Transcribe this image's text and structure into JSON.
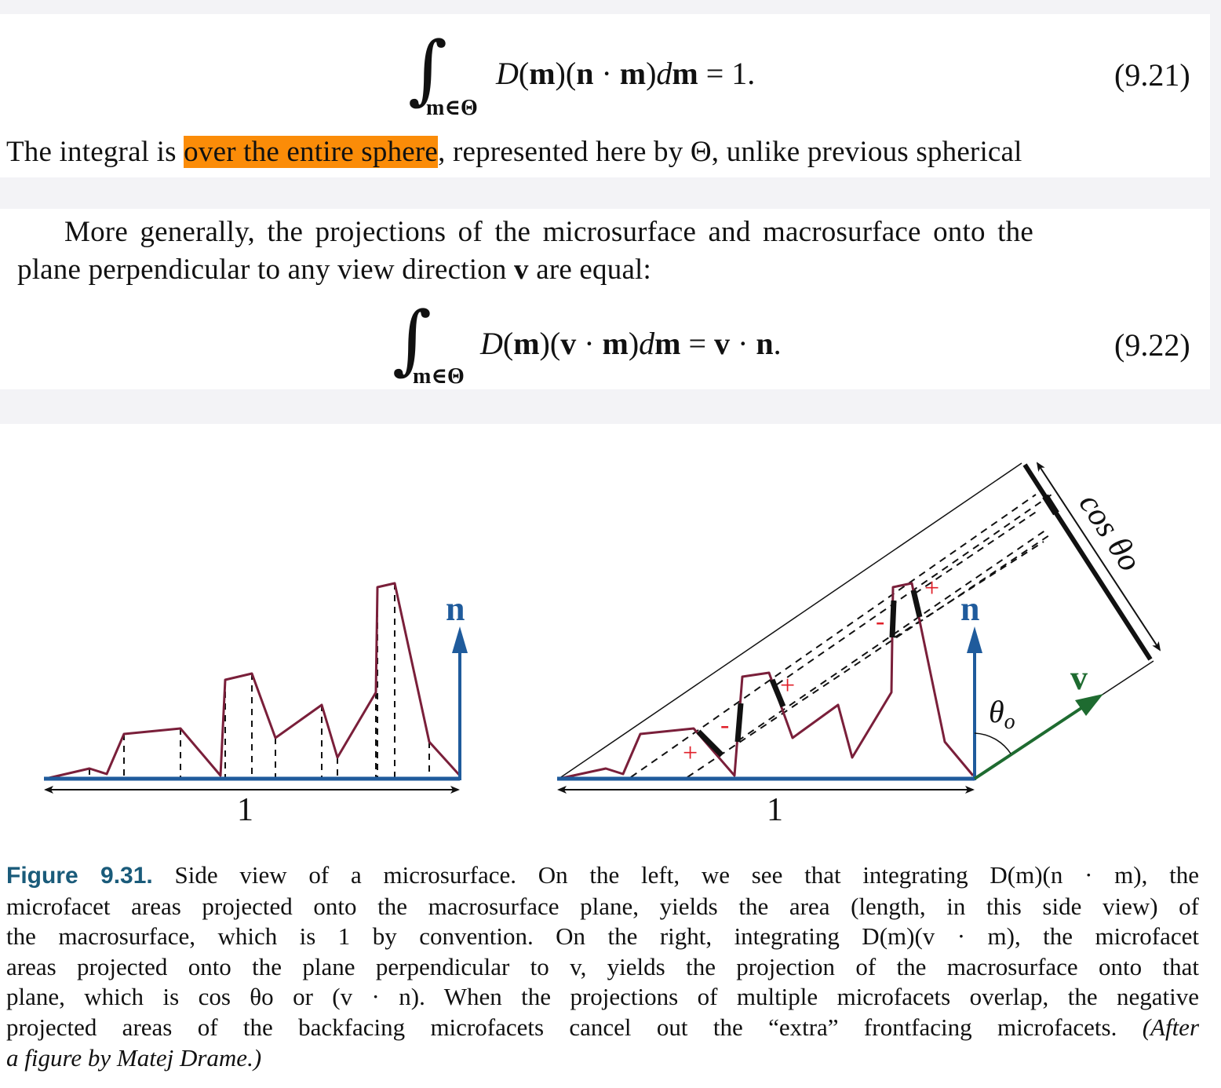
{
  "eq921": {
    "sub": "m∈Θ",
    "body": "D(m)(n · m)dm = 1.",
    "number": "(9.21)"
  },
  "para1": {
    "before": "The integral is ",
    "highlight": "over the entire sphere",
    "after": ", represented here by Θ, unlike previous spherical"
  },
  "para2": {
    "line1": "More generally, the projections of the microsurface and macrosurface onto the",
    "line2_a": "plane perpendicular to any view direction ",
    "line2_v": "v",
    "line2_b": " are equal:"
  },
  "eq922": {
    "sub": "m∈Θ",
    "body": "D(m)(v · m)dm = v · n.",
    "number": "(9.22)"
  },
  "figure": {
    "left_label_n": "n",
    "left_length_label": "1",
    "right_label_n": "n",
    "right_label_v": "v",
    "right_length_label": "1",
    "theta_label": "θo",
    "cos_label": "cos θo",
    "plus": "+",
    "minus": "-",
    "colors": {
      "surface": "#7a1f3a",
      "macro": "#1f5b9c",
      "view": "#1e6b30",
      "sign": "#e0202a"
    }
  },
  "caption": {
    "label": "Figure 9.31.",
    "l1": " Side view of a microsurface. On the left, we see that integrating D(m)(n · m), the",
    "l2": "microfacet areas projected onto the macrosurface plane, yields the area (length, in this side view) of",
    "l3": "the macrosurface, which is 1 by convention. On the right, integrating D(m)(v · m), the microfacet",
    "l4": "areas projected onto the plane perpendicular to v, yields the projection of the macrosurface onto that",
    "l5": "plane, which is cos θo or (v · n). When the projections of multiple microfacets overlap, the negative",
    "l6": "projected areas of the backfacing microfacets cancel out the “extra” frontfacing microfacets.",
    "l6_italic": " (After",
    "l7": "a figure by Matej Drame.)"
  }
}
